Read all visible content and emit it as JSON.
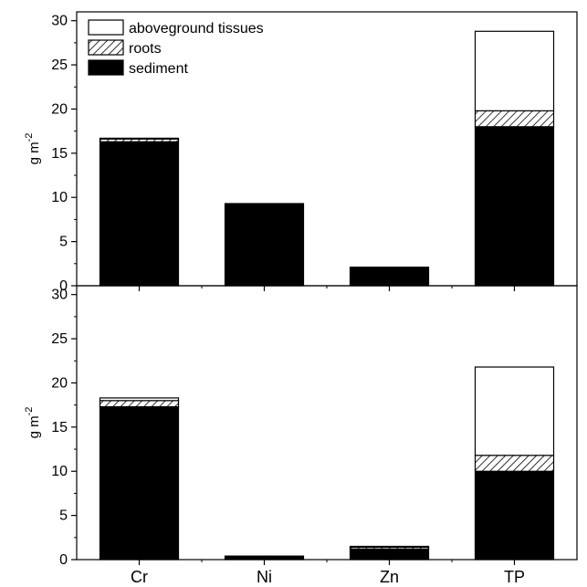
{
  "chart_data": [
    {
      "type": "bar",
      "stacked": true,
      "panel": "top",
      "categories": [
        "Cr",
        "Ni",
        "Zn",
        "TP"
      ],
      "ylabel": "g m",
      "ylabel_sup": "-2",
      "ylim": [
        0,
        31
      ],
      "yticks": [
        0,
        5,
        10,
        15,
        20,
        25,
        30
      ],
      "legend": "top-left",
      "series": [
        {
          "name": "sediment",
          "fill": "black",
          "values": [
            16.3,
            9.3,
            2.1,
            18.0
          ]
        },
        {
          "name": "roots",
          "fill": "hatched",
          "values": [
            0.3,
            0,
            0,
            1.8
          ]
        },
        {
          "name": "aboveground tissues",
          "fill": "white",
          "values": [
            0.1,
            0,
            0,
            9.0
          ]
        }
      ]
    },
    {
      "type": "bar",
      "stacked": true,
      "panel": "bottom",
      "categories": [
        "Cr",
        "Ni",
        "Zn",
        "TP"
      ],
      "ylabel": "g m",
      "ylabel_sup": "-2",
      "ylim": [
        0,
        31
      ],
      "yticks": [
        0,
        5,
        10,
        15,
        20,
        25,
        30
      ],
      "series": [
        {
          "name": "sediment",
          "fill": "black",
          "values": [
            17.3,
            0.4,
            1.2,
            10.0
          ]
        },
        {
          "name": "roots",
          "fill": "hatched",
          "values": [
            0.7,
            0,
            0.2,
            1.8
          ]
        },
        {
          "name": "aboveground tissues",
          "fill": "white",
          "values": [
            0.3,
            0,
            0.1,
            10.0
          ]
        }
      ]
    }
  ],
  "legend": {
    "items": [
      "aboveground tissues",
      "roots",
      "sediment"
    ],
    "fills": [
      "white",
      "hatched",
      "black"
    ]
  },
  "colors": {
    "bar_solid": "#000000",
    "bar_empty": "#ffffff",
    "axis": "#000000"
  }
}
